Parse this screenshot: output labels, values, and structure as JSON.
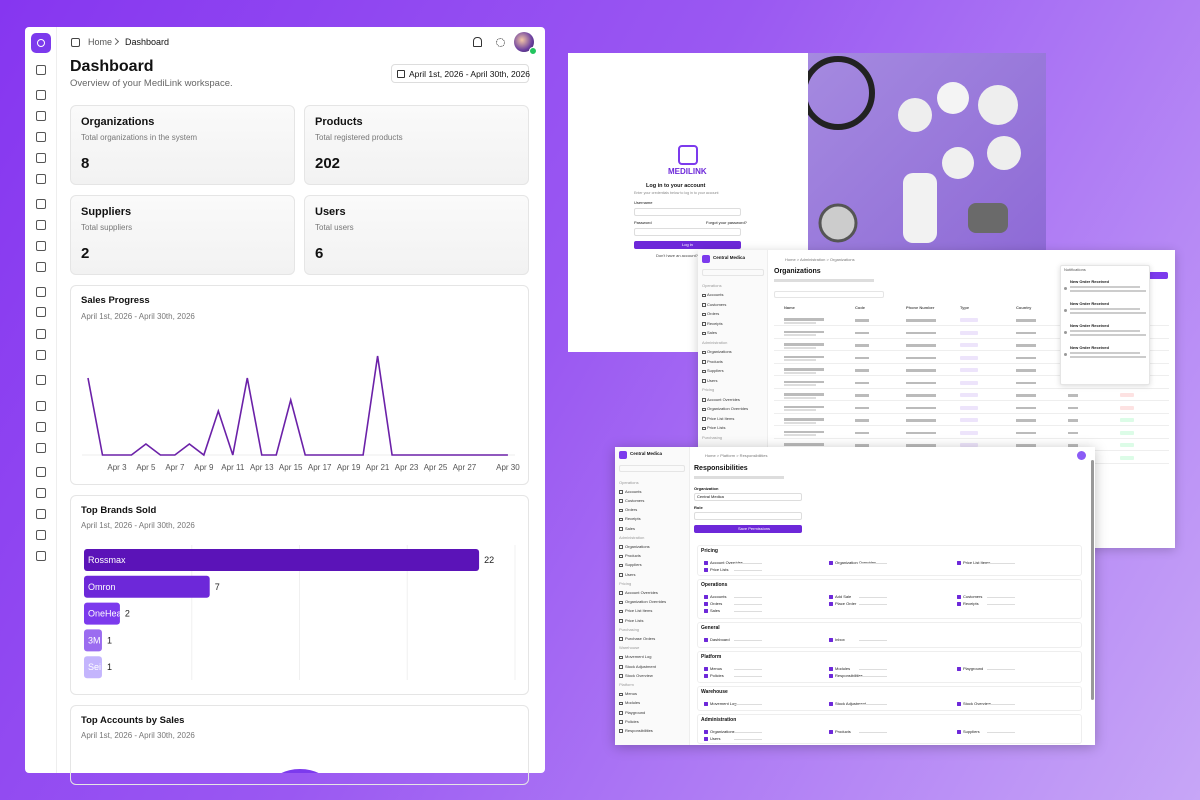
{
  "dashboard": {
    "breadcrumb": [
      "Home",
      "Dashboard"
    ],
    "title": "Dashboard",
    "subtitle": "Overview of your MediLink workspace.",
    "date_range": "April 1st, 2026 - April 30th, 2026",
    "cards": [
      {
        "title": "Organizations",
        "description": "Total organizations in the system",
        "value": 8
      },
      {
        "title": "Products",
        "description": "Total registered products",
        "value": 202
      },
      {
        "title": "Suppliers",
        "description": "Total suppliers",
        "value": 2
      },
      {
        "title": "Users",
        "description": "Total users",
        "value": 6
      }
    ],
    "sales_progress": {
      "type": "line",
      "title": "Sales Progress",
      "subtitle": "April 1st, 2026 - April 30th, 2026",
      "x": [
        null,
        null,
        "Apr 3",
        null,
        "Apr 5",
        null,
        "Apr 7",
        null,
        "Apr 9",
        null,
        "Apr 11",
        null,
        "Apr 13",
        null,
        "Apr 15",
        null,
        "Apr 17",
        null,
        "Apr 19",
        null,
        "Apr 21",
        null,
        "Apr 23",
        null,
        "Apr 25",
        null,
        "Apr 27",
        null,
        null,
        "Apr 30"
      ],
      "values": [
        7,
        0,
        0,
        0,
        1,
        0,
        0,
        1,
        0,
        4,
        0,
        7,
        0,
        0,
        5,
        0,
        0,
        0,
        0,
        0,
        9,
        0,
        0,
        0,
        0,
        0,
        0,
        0,
        0,
        0
      ],
      "ylim": [
        0,
        10
      ],
      "color": "#6b21a8"
    },
    "top_brands": {
      "type": "bar",
      "title": "Top Brands Sold",
      "subtitle": "April 1st, 2026 - April 30th, 2026",
      "categories": [
        "Rossmax",
        "Omron",
        "OneHeal",
        "3M",
        "Sei"
      ],
      "values": [
        22,
        7,
        2,
        1,
        1
      ],
      "colors": [
        "#5b13b8",
        "#6d28d9",
        "#7c3aed",
        "#9b6cf0",
        "#c4b5fd"
      ],
      "xlim": [
        0,
        24
      ]
    },
    "top_accounts": {
      "title": "Top Accounts by Sales",
      "subtitle": "April 1st, 2026 - April 30th, 2026"
    }
  },
  "login": {
    "brand": "MEDILINK",
    "title": "Log in to your account",
    "subtitle": "Enter your credentials below to log in to your account",
    "username_label": "Username",
    "password_label": "Password",
    "forgot": "Forgot your password?",
    "button": "Log in",
    "signup": "Don't have an account?"
  },
  "organizations": {
    "workspace": "Central Medica",
    "menu": [
      "Operations",
      "Accounts",
      "Customers",
      "Orders",
      "Receipts",
      "Sales",
      "Administration",
      "Organizations",
      "Products",
      "Suppliers",
      "Users",
      "Pricing",
      "Account Overrides",
      "Organization Overrides",
      "Price List Items",
      "Price Lists",
      "Purchasing"
    ],
    "breadcrumb": "Home > Administration > Organizations",
    "title": "Organizations",
    "columns": [
      "Name",
      "Code",
      "Phone Number",
      "Type",
      "Country"
    ],
    "notifications_title": "Notifications",
    "notifications": [
      "New Order Received",
      "New Order Received",
      "New Order Received",
      "New Order Received"
    ]
  },
  "responsibilities": {
    "workspace": "Central Medica",
    "menu": [
      "Operations",
      "Accounts",
      "Customers",
      "Orders",
      "Receipts",
      "Sales",
      "Administration",
      "Organizations",
      "Products",
      "Suppliers",
      "Users",
      "Pricing",
      "Account Overrides",
      "Organization Overrides",
      "Price List Items",
      "Price Lists",
      "Purchasing",
      "Purchase Orders",
      "Warehouse",
      "Movement Log",
      "Stock Adjustment",
      "Stock Overview",
      "Platform",
      "Menus",
      "Modules",
      "Playground",
      "Policies",
      "Responsibilities"
    ],
    "breadcrumb": "Home > Platform > Responsibilities",
    "title": "Responsibilities",
    "organization_label": "Organization",
    "organization": "Central Medica",
    "role_label": "Role",
    "button": "Save Permissions",
    "sections": [
      {
        "name": "Pricing",
        "items": [
          "Account Overrides",
          "Organization Overrides",
          "Price List Items",
          "Price Lists"
        ]
      },
      {
        "name": "Operations",
        "items": [
          "Accounts",
          "Add Sale",
          "Customers",
          "Orders",
          "Place Order",
          "Receipts",
          "Sales"
        ]
      },
      {
        "name": "General",
        "items": [
          "Dashboard",
          "Inbox"
        ]
      },
      {
        "name": "Platform",
        "items": [
          "Menus",
          "Modules",
          "Playground",
          "Policies",
          "Responsibilities"
        ]
      },
      {
        "name": "Warehouse",
        "items": [
          "Movement Log",
          "Stock Adjustment",
          "Stock Overview"
        ]
      },
      {
        "name": "Administration",
        "items": [
          "Organizations",
          "Products",
          "Suppliers",
          "Users"
        ]
      }
    ]
  }
}
